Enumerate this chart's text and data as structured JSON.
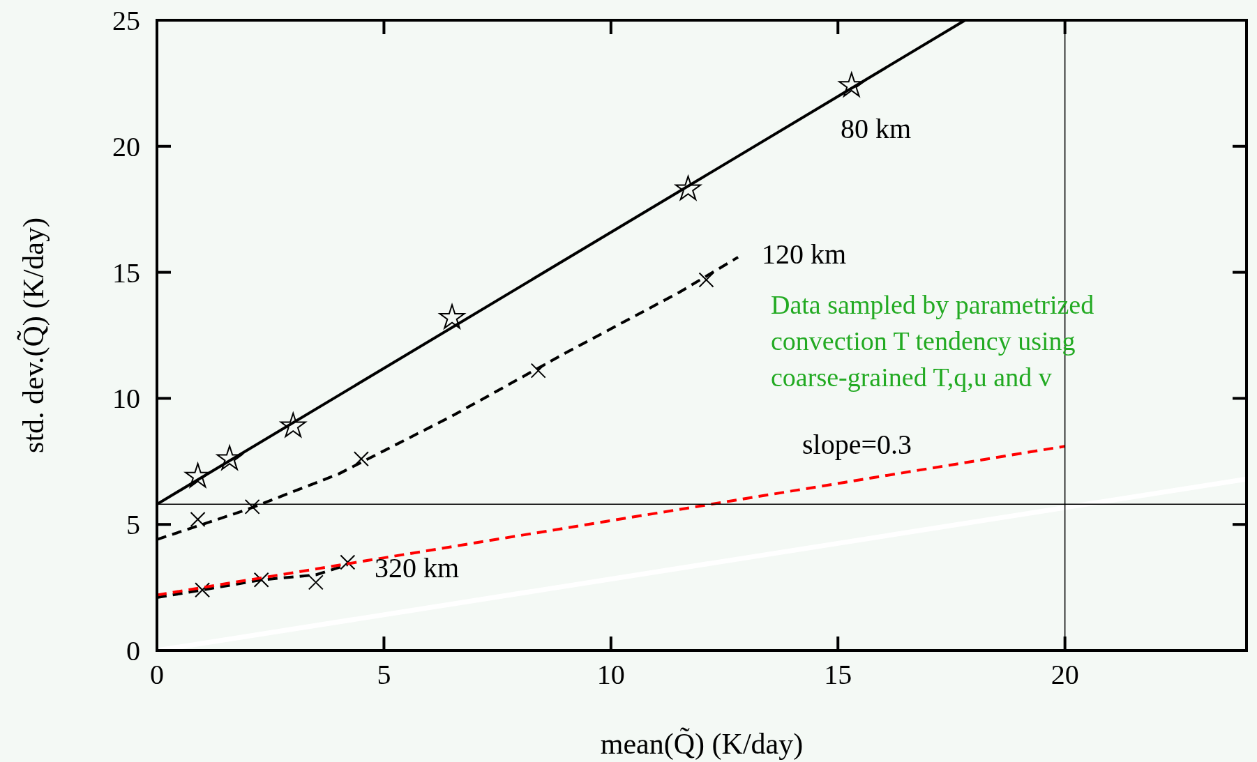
{
  "chart_data": {
    "type": "line",
    "xlabel": "mean(Q̃) (K/day)",
    "ylabel": "std. dev.(Q̃) (K/day)",
    "xlim": [
      0,
      24
    ],
    "ylim": [
      0,
      25
    ],
    "xticks": [
      0,
      5,
      10,
      15,
      20
    ],
    "yticks": [
      0,
      5,
      10,
      15,
      20,
      25
    ],
    "grid": false,
    "legend": false,
    "series": [
      {
        "color": "#000000",
        "line_style": "solid",
        "x": [
          0,
          17.8
        ],
        "values": [
          5.8,
          25
        ]
      },
      {
        "type": "scatter",
        "color": "#000000",
        "marker": "star",
        "x": [
          0.9,
          1.6,
          3.0,
          6.5,
          11.7,
          15.3
        ],
        "values": [
          6.9,
          7.6,
          8.9,
          13.2,
          18.3,
          22.4
        ]
      },
      {
        "color": "#000000",
        "line_style": "dashed",
        "x": [
          0,
          2,
          4,
          6.5,
          9,
          11.5,
          12.8
        ],
        "values": [
          4.4,
          5.6,
          7.0,
          9.3,
          11.8,
          14.2,
          15.6
        ]
      },
      {
        "type": "scatter",
        "color": "#000000",
        "marker": "cross",
        "x": [
          0.9,
          2.1,
          4.5,
          8.4,
          12.1
        ],
        "values": [
          5.2,
          5.7,
          7.6,
          11.1,
          14.7
        ]
      },
      {
        "color": "#000000",
        "line_style": "dashed",
        "x": [
          0,
          1,
          2.3,
          3.5,
          4.2
        ],
        "values": [
          2.1,
          2.4,
          2.8,
          3.0,
          3.4
        ]
      },
      {
        "type": "scatter",
        "color": "#000000",
        "marker": "cross",
        "x": [
          1.0,
          2.3,
          3.5,
          4.2
        ],
        "values": [
          2.4,
          2.8,
          2.7,
          3.5
        ]
      },
      {
        "color": "#ff0000",
        "line_style": "dashed",
        "x": [
          0,
          20
        ],
        "values": [
          2.2,
          8.1
        ]
      },
      {
        "color": "#ffffff",
        "line_style": "solid",
        "x": [
          0,
          24
        ],
        "values": [
          0,
          6.8
        ]
      }
    ],
    "ref_lines": [
      {
        "axis": "y",
        "value": 5.8,
        "color": "#000000"
      },
      {
        "axis": "x",
        "value": 20,
        "color": "#000000"
      }
    ],
    "annotations": [
      "80 km",
      "120 km",
      "320 km",
      "slope=0.3",
      "Data sampled by parametrized\nconvection T tendency using\ncoarse-grained T,q,u and v"
    ]
  }
}
